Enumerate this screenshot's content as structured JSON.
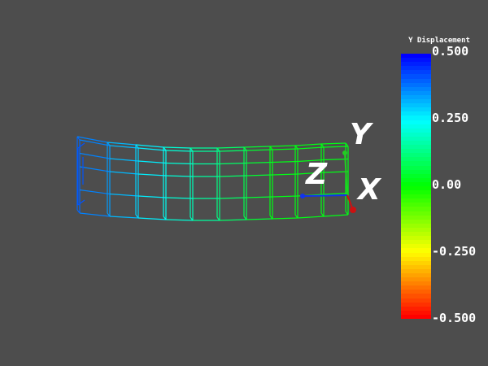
{
  "scene": {
    "background": "#4d4d4d",
    "mesh_style": "wireframe",
    "scalar_field": "Y Displacement"
  },
  "axes": {
    "x_label": "X",
    "y_label": "Y",
    "z_label": "Z",
    "x_color": "#cc1111",
    "y_color": "#22cc22",
    "z_color": "#1133ee"
  },
  "scalar_bar": {
    "title": "Y Displacement",
    "range": [
      -0.5,
      0.5
    ],
    "ticks": [
      "0.500",
      "0.250",
      "0.00",
      "-0.250",
      "-0.500"
    ],
    "colormap": [
      "#0000ff",
      "#00ffff",
      "#00ff00",
      "#ffff00",
      "#ff0000"
    ]
  }
}
